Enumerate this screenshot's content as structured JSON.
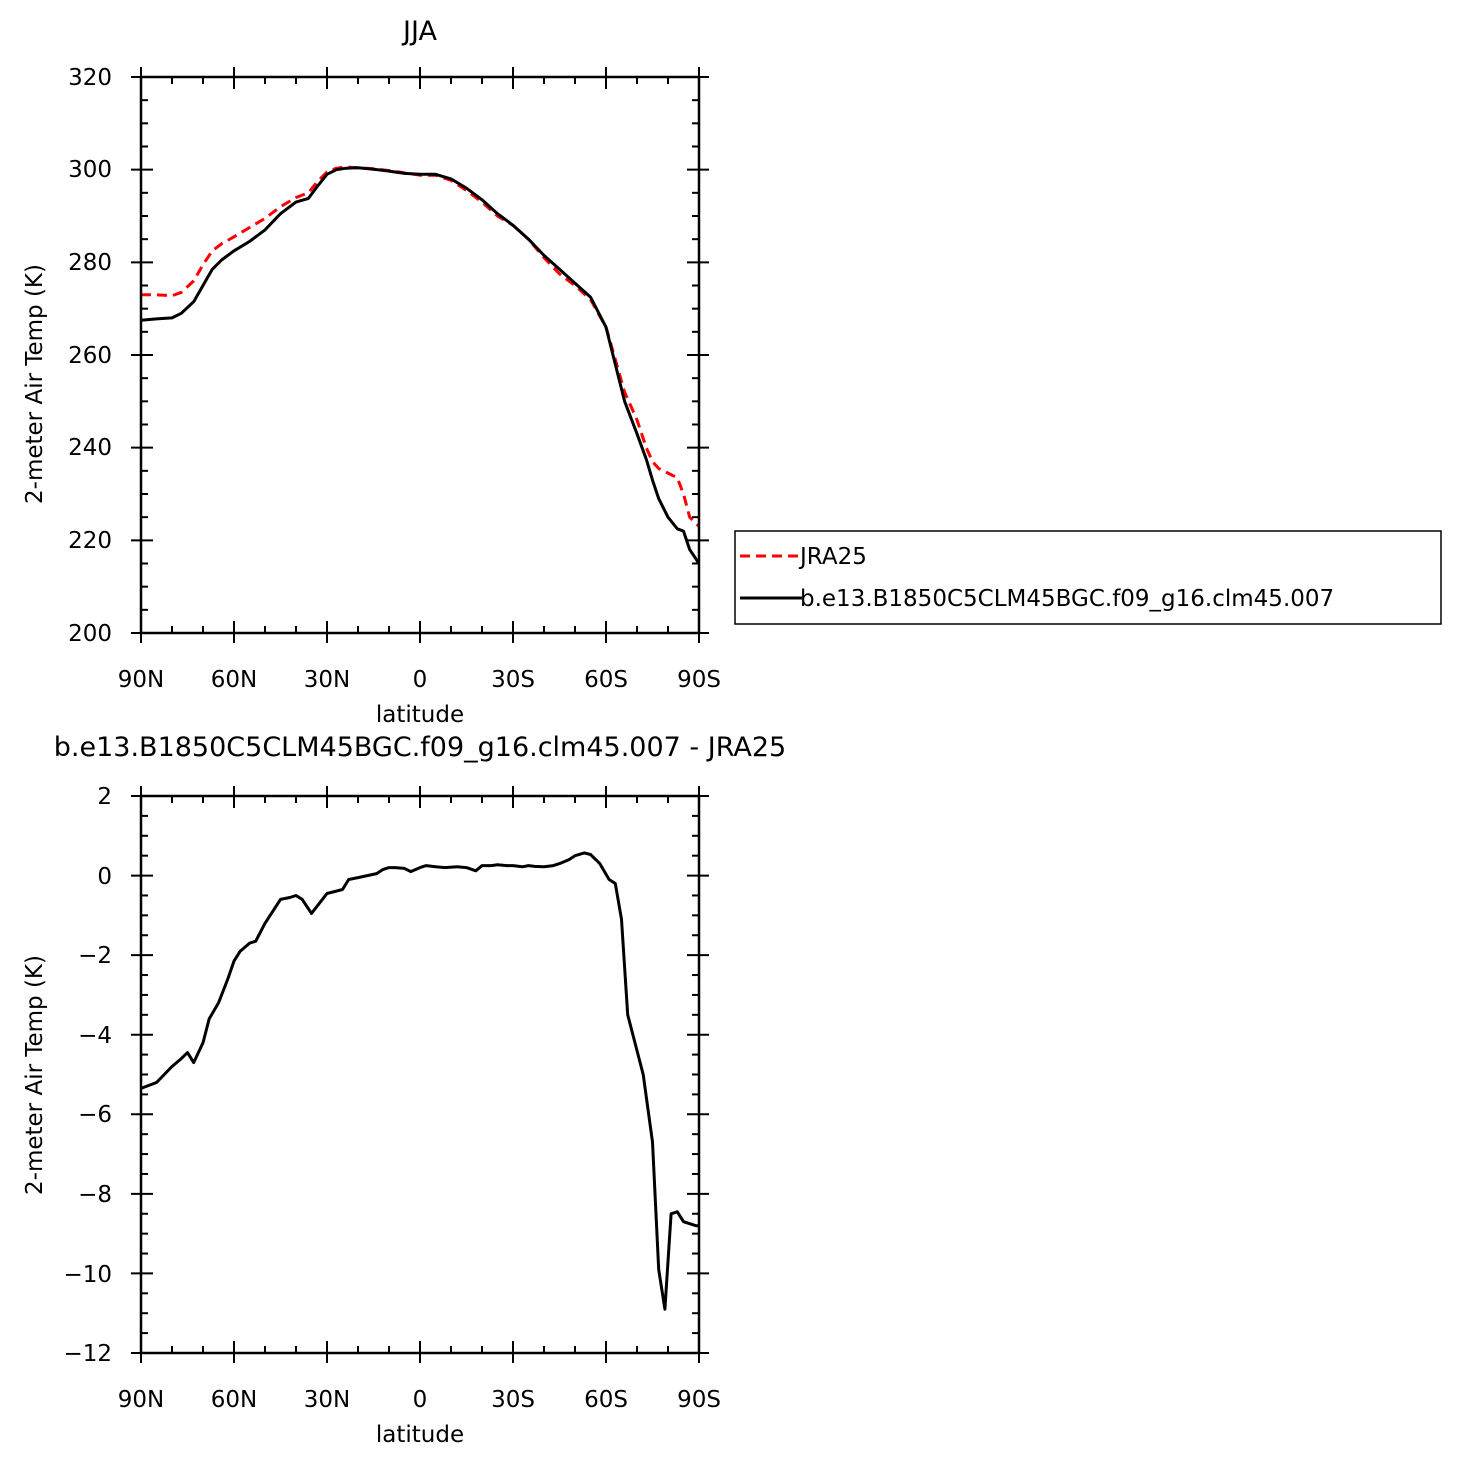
{
  "chart_data": [
    {
      "type": "line",
      "title": "JJA",
      "xlabel": "latitude",
      "ylabel": "2-meter Air Temp (K)",
      "xlim": [
        90,
        -90
      ],
      "ylim": [
        200,
        320
      ],
      "xticks": [
        90,
        60,
        30,
        0,
        -30,
        -60,
        -90
      ],
      "xtick_labels": [
        "90N",
        "60N",
        "30N",
        "0",
        "30S",
        "60S",
        "90S"
      ],
      "yticks": [
        200,
        220,
        240,
        260,
        280,
        300,
        320
      ],
      "ytick_labels": [
        "200",
        "220",
        "240",
        "260",
        "280",
        "300",
        "320"
      ],
      "grid": false,
      "legend": "right",
      "series": [
        {
          "name": "JRA25",
          "color": "#ff0000",
          "dash": "dashed",
          "x": [
            90,
            85,
            80,
            77,
            73,
            70,
            67,
            64,
            60,
            55,
            50,
            45,
            40,
            36,
            33,
            30,
            27,
            24,
            20,
            15,
            10,
            5,
            0,
            -5,
            -10,
            -15,
            -20,
            -25,
            -30,
            -35,
            -40,
            -45,
            -50,
            -55,
            -60,
            -63,
            -66,
            -70,
            -73,
            -75,
            -77,
            -80,
            -83,
            -85,
            -87,
            -90
          ],
          "y": [
            273,
            273,
            272.8,
            273.5,
            276,
            279.5,
            282.5,
            284,
            285.5,
            287.5,
            289.5,
            292,
            294,
            295,
            297.5,
            299.5,
            300.3,
            300.6,
            300.4,
            300.2,
            299.8,
            299.3,
            298.8,
            298.8,
            297.7,
            295.5,
            293,
            290,
            288,
            285,
            281,
            277.5,
            275,
            272,
            266,
            259,
            252,
            246,
            240,
            237,
            235.5,
            234.5,
            233.5,
            230,
            225,
            223
          ]
        },
        {
          "name": "b.e13.B1850C5CLM45BGC.f09_g16.clm45.007",
          "color": "#000000",
          "dash": "solid",
          "x": [
            90,
            85,
            80,
            77,
            73,
            70,
            67,
            64,
            60,
            55,
            50,
            45,
            40,
            36,
            33,
            30,
            27,
            24,
            20,
            15,
            10,
            5,
            0,
            -5,
            -10,
            -15,
            -20,
            -25,
            -30,
            -35,
            -40,
            -45,
            -50,
            -55,
            -60,
            -63,
            -66,
            -70,
            -73,
            -75,
            -77,
            -80,
            -83,
            -85,
            -87,
            -90
          ],
          "y": [
            267.5,
            267.8,
            268,
            269,
            271.5,
            275,
            278.5,
            280.5,
            282.5,
            284.5,
            287,
            290.5,
            293,
            293.8,
            296.5,
            299,
            300,
            300.3,
            300.4,
            300.1,
            299.7,
            299.2,
            299,
            299,
            298,
            296,
            293.5,
            290.5,
            288,
            285,
            281.5,
            278.5,
            275.5,
            272.5,
            266,
            258,
            250,
            243,
            237.5,
            233,
            229,
            225,
            222.5,
            222,
            218,
            215
          ]
        }
      ]
    },
    {
      "type": "line",
      "title": "b.e13.B1850C5CLM45BGC.f09_g16.clm45.007 - JRA25",
      "xlabel": "latitude",
      "ylabel": "2-meter Air Temp (K)",
      "xlim": [
        90,
        -90
      ],
      "ylim": [
        -12,
        2
      ],
      "xticks": [
        90,
        60,
        30,
        0,
        -30,
        -60,
        -90
      ],
      "xtick_labels": [
        "90N",
        "60N",
        "30N",
        "0",
        "30S",
        "60S",
        "90S"
      ],
      "yticks": [
        -12,
        -10,
        -8,
        -6,
        -4,
        -2,
        0,
        2
      ],
      "ytick_labels": [
        "−12",
        "−10",
        "−8",
        "−6",
        "−4",
        "−2",
        "0",
        "2"
      ],
      "grid": false,
      "series": [
        {
          "color": "#000000",
          "dash": "solid",
          "x": [
            90,
            85,
            80,
            77,
            75,
            73,
            70,
            68,
            65,
            62,
            60,
            58,
            55,
            53,
            50,
            45,
            42,
            40,
            38,
            35,
            33,
            30,
            25,
            23,
            20,
            17,
            14,
            12,
            10,
            8,
            5,
            3,
            0,
            -2,
            -5,
            -8,
            -12,
            -15,
            -18,
            -20,
            -23,
            -25,
            -28,
            -30,
            -33,
            -35,
            -37,
            -40,
            -43,
            -45,
            -48,
            -50,
            -53,
            -55,
            -58,
            -61,
            -63,
            -65,
            -67,
            -70,
            -72,
            -75,
            -77,
            -79,
            -81,
            -83,
            -85,
            -87,
            -89,
            -90
          ],
          "y": [
            -5.35,
            -5.2,
            -4.8,
            -4.6,
            -4.45,
            -4.7,
            -4.2,
            -3.6,
            -3.2,
            -2.6,
            -2.15,
            -1.9,
            -1.7,
            -1.65,
            -1.2,
            -0.6,
            -0.55,
            -0.5,
            -0.6,
            -0.95,
            -0.75,
            -0.45,
            -0.35,
            -0.1,
            -0.05,
            0,
            0.05,
            0.15,
            0.2,
            0.2,
            0.18,
            0.1,
            0.2,
            0.25,
            0.22,
            0.2,
            0.22,
            0.2,
            0.12,
            0.25,
            0.25,
            0.27,
            0.25,
            0.25,
            0.22,
            0.25,
            0.23,
            0.22,
            0.25,
            0.3,
            0.4,
            0.5,
            0.57,
            0.53,
            0.3,
            -0.1,
            -0.2,
            -1.1,
            -3.5,
            -4.4,
            -5,
            -6.7,
            -9.9,
            -10.9,
            -8.5,
            -8.45,
            -8.7,
            -8.75,
            -8.8,
            -8.8
          ]
        }
      ]
    }
  ]
}
